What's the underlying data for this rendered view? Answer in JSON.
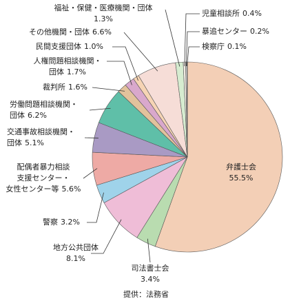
{
  "chart_data": {
    "type": "pie",
    "categories": [
      "弁護士会",
      "司法書士会",
      "地方公共団体",
      "警察",
      "配偶者暴力相談\n支援センター・\n女性センター等",
      "交通事故相談機関・\n団体",
      "労働問題相談機関・\n団体",
      "裁判所",
      "人権問題相談機関・\n団体",
      "民間支援団体",
      "その他機関・団体",
      "福祉・保健・医療機関・団体",
      "児童相談所",
      "暴追センター",
      "検察庁"
    ],
    "values": [
      55.5,
      3.4,
      8.1,
      3.2,
      5.6,
      5.1,
      6.2,
      1.6,
      1.7,
      1.0,
      6.6,
      1.3,
      0.4,
      0.2,
      0.1
    ],
    "value_labels": [
      "55.5%",
      "3.4%",
      "8.1%",
      "3.2%",
      "5.6%",
      "5.1%",
      "6.2%",
      "1.6%",
      "1.7%",
      "1.0%",
      "6.6%",
      "1.3%",
      "0.4%",
      "0.2%",
      "0.1%"
    ],
    "colors": [
      "#f3cfb6",
      "#b9dcb0",
      "#efbdd7",
      "#9fd3ea",
      "#eeaaa5",
      "#a99ac4",
      "#5fbfa8",
      "#e2c29c",
      "#d9a8cc",
      "#f6d4b4",
      "#f6ddd7",
      "#d6ecd0",
      "#f3ede4",
      "#e8e8e8",
      "#ffffff"
    ],
    "source": "提供：法務省"
  }
}
